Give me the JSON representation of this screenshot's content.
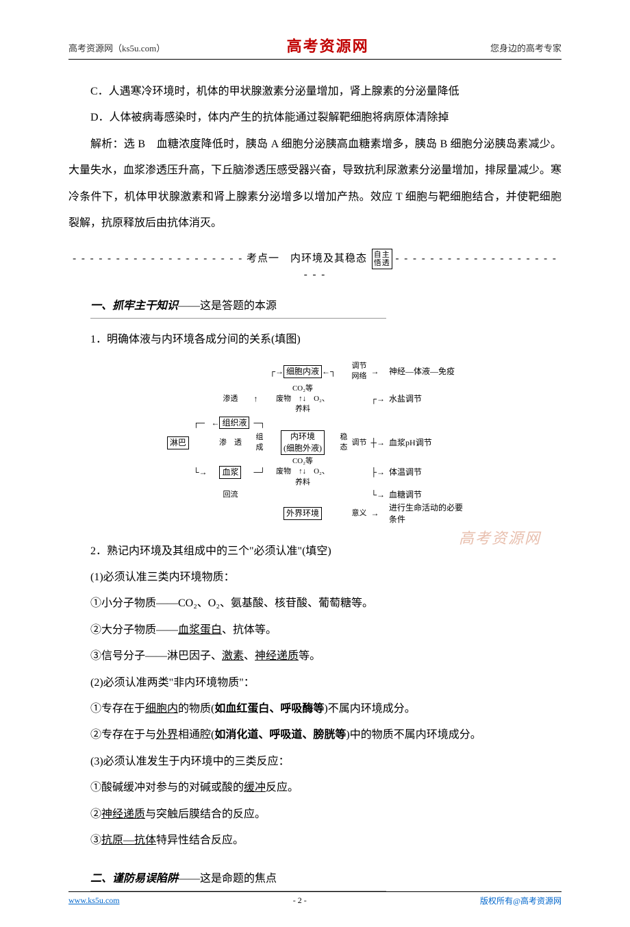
{
  "header": {
    "left": "高考资源网（ks5u.com）",
    "center": "高考资源网",
    "right": "您身边的高考专家"
  },
  "options": {
    "c": "C．人遇寒冷环境时，机体的甲状腺激素分泌量增加，肾上腺素的分泌量降低",
    "d": "D．人体被病毒感染时，体内产生的抗体能通过裂解靶细胞将病原体清除掉"
  },
  "analysis": "解析：选 B　血糖浓度降低时，胰岛 A 细胞分泌胰高血糖素增多，胰岛 B 细胞分泌胰岛素减少。大量失水，血浆渗透压升高，下丘脑渗透压感受器兴奋，导致抗利尿激素分泌量增加，排尿量减少。寒冷条件下，机体甲状腺激素和肾上腺素分泌增多以增加产热。效应 T 细胞与靶细胞结合，并使靶细胞裂解，抗原释放后由抗体消灭。",
  "section": {
    "dashes_left": "- - - - - - - - - - - - - - - - - - - -",
    "label": "考点一　内环境及其稳态",
    "stamp_top": "自主",
    "stamp_bottom": "悟透",
    "dashes_right": "- - - - - - - - - - - - - - - - - - - - - -"
  },
  "sub1": {
    "title_bold": "一、抓牢主干知识",
    "title_rest": "——这是答题的本源"
  },
  "q1": {
    "title": "1．明确体液与内环境各成分间的关系(填图)"
  },
  "diagram": {
    "cell_fluid": "细胞内液",
    "co2_waste": "CO₂等\n废物",
    "o2_nutrient": "O₂、\n养料",
    "tissue_fluid": "组织液",
    "lymph": "淋巴",
    "plasma": "血浆",
    "shentou": "渗透",
    "huiliu": "回流",
    "shen": "渗",
    "tou": "透",
    "zu": "组",
    "cheng": "成",
    "inner_env": "内环境\n(细胞外液)",
    "external": "外界环境",
    "wen": "稳",
    "tai": "态",
    "tiaojie_wangluo": "调节\n网络",
    "tiaojie": "调节",
    "yiyi": "意义",
    "r1": "神经—体液—免疫",
    "r2": "水盐调节",
    "r3": "血浆pH调节",
    "r4": "体温调节",
    "r5": "血糖调节",
    "r6": "进行生命活动的必要\n条件"
  },
  "q2": {
    "title": "2．熟记内环境及其组成中的三个\"必须认准\"(填空)",
    "p1": "(1)必须认准三类内环境物质：",
    "p1a": "①小分子物质——CO₂、O₂、氨基酸、核苷酸、葡萄糖等。",
    "p1b_pre": "②大分子物质——",
    "p1b_u": "血浆蛋白",
    "p1b_post": "、抗体等。",
    "p1c_pre": "③信号分子——淋巴因子、",
    "p1c_u1": "激素",
    "p1c_mid": "、",
    "p1c_u2": "神经递质",
    "p1c_post": "等。",
    "p2": "(2)必须认准两类\"非内环境物质\"：",
    "p2a_pre": "①专存在于",
    "p2a_u1": "细胞内",
    "p2a_mid": "的物质(",
    "p2a_s": "如血红蛋白、呼吸酶等",
    "p2a_post": ")不属内环境成分。",
    "p2b_pre": "②专存在于与",
    "p2b_u1": "外界",
    "p2b_mid": "相通腔(",
    "p2b_s": "如消化道、呼吸道、膀胱等",
    "p2b_post": ")中的物质不属内环境成分。",
    "p3": "(3)必须认准发生于内环境中的三类反应：",
    "p3a_pre": "①酸碱缓冲对参与的对碱或酸的",
    "p3a_u": "缓冲",
    "p3a_post": "反应。",
    "p3b_pre": "②",
    "p3b_u": "神经递质",
    "p3b_post": "与突触后膜结合的反应。",
    "p3c_pre": "③",
    "p3c_u": "抗原—抗体",
    "p3c_post": "特异性结合反应。"
  },
  "sub2": {
    "title_bold": "二、谨防易误陷阱",
    "title_rest": "——这是命题的焦点"
  },
  "watermark": "高考资源网",
  "footer": {
    "left": "www.ks5u.com",
    "center": "- 2 -",
    "right": "版权所有@高考资源网"
  }
}
